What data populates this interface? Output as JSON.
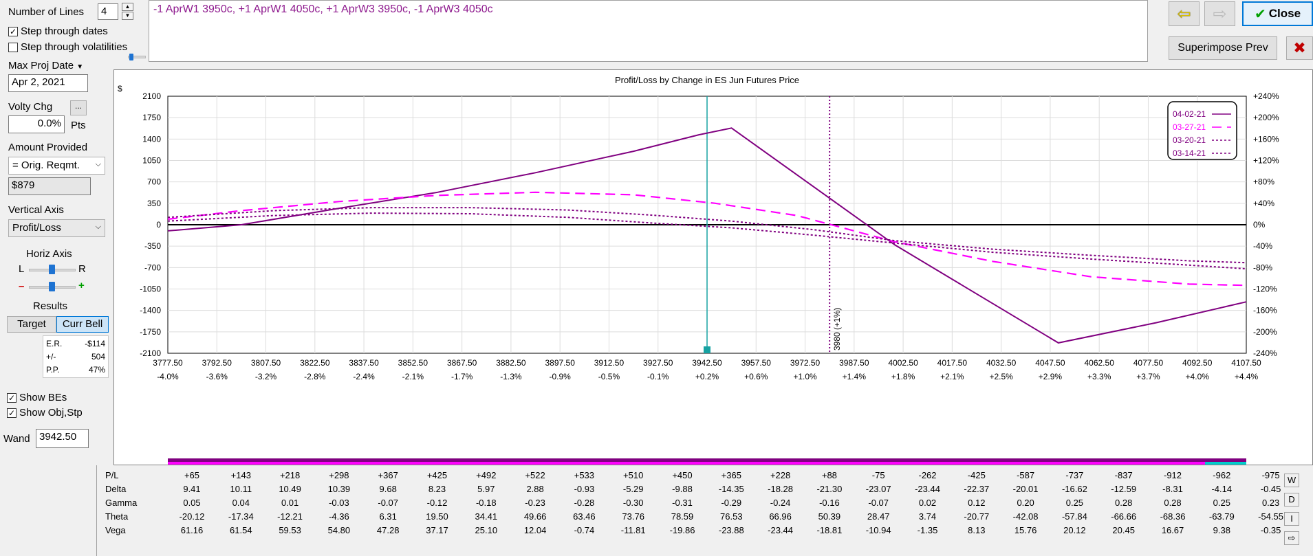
{
  "left": {
    "num_lines_label": "Number of Lines",
    "num_lines_value": "4",
    "step_dates_label": "Step through dates",
    "step_dates_checked": true,
    "step_vols_label": "Step through volatilities",
    "step_vols_checked": false,
    "max_proj_label": "Max Proj Date",
    "max_proj_value": "Apr 2, 2021",
    "volty_label": "Volty Chg",
    "volty_btn": "...",
    "volty_value": "0.0%",
    "volty_unit": "Pts",
    "amount_label": "Amount Provided",
    "amount_select": "= Orig. Reqmt.",
    "amount_value": "$879",
    "vaxis_label": "Vertical Axis",
    "vaxis_select": "Profit/Loss",
    "haxis_label": "Horiz Axis",
    "haxis_l": "L",
    "haxis_r": "R",
    "zoom_minus": "–",
    "zoom_plus": "+",
    "results_label": "Results",
    "target_btn": "Target",
    "currbell_btn": "Curr Bell",
    "stats": [
      {
        "k": "E.R.",
        "v": "-$114"
      },
      {
        "k": "+/-",
        "v": "504"
      },
      {
        "k": "P.P.",
        "v": "47%"
      }
    ],
    "show_bes_label": "Show BEs",
    "show_objstp_label": "Show Obj,Stp",
    "wand_label": "Wand",
    "wand_value": "3942.50"
  },
  "top": {
    "legs_text": "-1 AprW1 3950c, +1 AprW1 4050c, +1 AprW3 3950c, -1 AprW3 4050c",
    "close_label": "Close",
    "superimpose_label": "Superimpose Prev"
  },
  "chart_data": {
    "type": "line",
    "title": "Profit/Loss by Change in ES Jun Futures Price",
    "ylabel": "$",
    "ylim": [
      -2100,
      2100
    ],
    "xlim": [
      3777.5,
      4107.5
    ],
    "yticks": [
      "2100",
      "1750",
      "1400",
      "1050",
      "700",
      "350",
      "0",
      "-350",
      "-700",
      "-1050",
      "-1400",
      "-1750",
      "-2100"
    ],
    "y2ticks": [
      "+240%",
      "+200%",
      "+160%",
      "+120%",
      "+80%",
      "+40%",
      "0%",
      "-40%",
      "-80%",
      "-120%",
      "-160%",
      "-200%",
      "-240%"
    ],
    "xticks": [
      "3777.50",
      "3792.50",
      "3807.50",
      "3822.50",
      "3837.50",
      "3852.50",
      "3867.50",
      "3882.50",
      "3897.50",
      "3912.50",
      "3927.50",
      "3942.50",
      "3957.50",
      "3972.50",
      "3987.50",
      "4002.50",
      "4017.50",
      "4032.50",
      "4047.50",
      "4062.50",
      "4077.50",
      "4092.50",
      "4107.50"
    ],
    "xpct": [
      "-4.0%",
      "-3.6%",
      "-3.2%",
      "-2.8%",
      "-2.4%",
      "-2.1%",
      "-1.7%",
      "-1.3%",
      "-0.9%",
      "-0.5%",
      "-0.1%",
      "+0.2%",
      "+0.6%",
      "+1.0%",
      "+1.4%",
      "+1.8%",
      "+2.1%",
      "+2.5%",
      "+2.9%",
      "+3.3%",
      "+3.7%",
      "+4.0%",
      "+4.4%"
    ],
    "current_price": 3942.5,
    "vertical_marker": {
      "x": 3980,
      "label": "3980 (+1%)"
    },
    "series": [
      {
        "name": "04-02-21",
        "color": "#800080",
        "dash": "solid",
        "x": [
          3777.5,
          3800,
          3830,
          3860,
          3890,
          3920,
          3940,
          3950,
          4000,
          4050,
          4080,
          4107.5
        ],
        "y": [
          -100,
          0,
          270,
          530,
          850,
          1200,
          1470,
          1580,
          -330,
          -1930,
          -1600,
          -1260
        ]
      },
      {
        "name": "03-27-21",
        "color": "#ff00ff",
        "dash": "long",
        "x": [
          3777.5,
          3800,
          3830,
          3860,
          3890,
          3920,
          3945,
          3970,
          4000,
          4030,
          4060,
          4090,
          4107.5
        ],
        "y": [
          90,
          230,
          380,
          480,
          530,
          490,
          350,
          150,
          -280,
          -600,
          -850,
          -970,
          -990
        ]
      },
      {
        "name": "03-20-21",
        "color": "#800080",
        "dash": "dotted",
        "x": [
          3777.5,
          3810,
          3840,
          3870,
          3900,
          3925,
          3950,
          3975,
          4000,
          4030,
          4060,
          4090,
          4107.5
        ],
        "y": [
          120,
          230,
          280,
          280,
          240,
          160,
          60,
          -80,
          -260,
          -400,
          -500,
          -590,
          -620
        ]
      },
      {
        "name": "03-14-21",
        "color": "#800080",
        "dash": "dotted",
        "x": [
          3777.5,
          3810,
          3840,
          3870,
          3900,
          3925,
          3950,
          3975,
          4000,
          4030,
          4060,
          4090,
          4107.5
        ],
        "y": [
          60,
          150,
          190,
          180,
          120,
          30,
          -50,
          -170,
          -300,
          -450,
          -560,
          -660,
          -720
        ]
      }
    ],
    "legend": "top-right",
    "grid": true
  },
  "greeks": {
    "rows": [
      {
        "h": "P/L",
        "v": [
          "+65",
          "+143",
          "+218",
          "+298",
          "+367",
          "+425",
          "+492",
          "+522",
          "+533",
          "+510",
          "+450",
          "+365",
          "+228",
          "+88",
          "-75",
          "-262",
          "-425",
          "-587",
          "-737",
          "-837",
          "-912",
          "-962",
          "-975"
        ]
      },
      {
        "h": "Delta",
        "v": [
          "9.41",
          "10.11",
          "10.49",
          "10.39",
          "9.68",
          "8.23",
          "5.97",
          "2.88",
          "-0.93",
          "-5.29",
          "-9.88",
          "-14.35",
          "-18.28",
          "-21.30",
          "-23.07",
          "-23.44",
          "-22.37",
          "-20.01",
          "-16.62",
          "-12.59",
          "-8.31",
          "-4.14",
          "-0.45"
        ]
      },
      {
        "h": "Gamma",
        "v": [
          "0.05",
          "0.04",
          "0.01",
          "-0.03",
          "-0.07",
          "-0.12",
          "-0.18",
          "-0.23",
          "-0.28",
          "-0.30",
          "-0.31",
          "-0.29",
          "-0.24",
          "-0.16",
          "-0.07",
          "0.02",
          "0.12",
          "0.20",
          "0.25",
          "0.28",
          "0.28",
          "0.25",
          "0.23"
        ]
      },
      {
        "h": "Theta",
        "v": [
          "-20.12",
          "-17.34",
          "-12.21",
          "-4.36",
          "6.31",
          "19.50",
          "34.41",
          "49.66",
          "63.46",
          "73.76",
          "78.59",
          "76.53",
          "66.96",
          "50.39",
          "28.47",
          "3.74",
          "-20.77",
          "-42.08",
          "-57.84",
          "-66.66",
          "-68.36",
          "-63.79",
          "-54.55"
        ]
      },
      {
        "h": "Vega",
        "v": [
          "61.16",
          "61.54",
          "59.53",
          "54.80",
          "47.28",
          "37.17",
          "25.10",
          "12.04",
          "-0.74",
          "-11.81",
          "-19.86",
          "-23.88",
          "-23.44",
          "-18.81",
          "-10.94",
          "-1.35",
          "8.13",
          "15.76",
          "20.12",
          "20.45",
          "16.67",
          "9.38",
          "-0.35"
        ]
      }
    ],
    "side": [
      "W",
      "D",
      "I",
      "⇨"
    ]
  }
}
